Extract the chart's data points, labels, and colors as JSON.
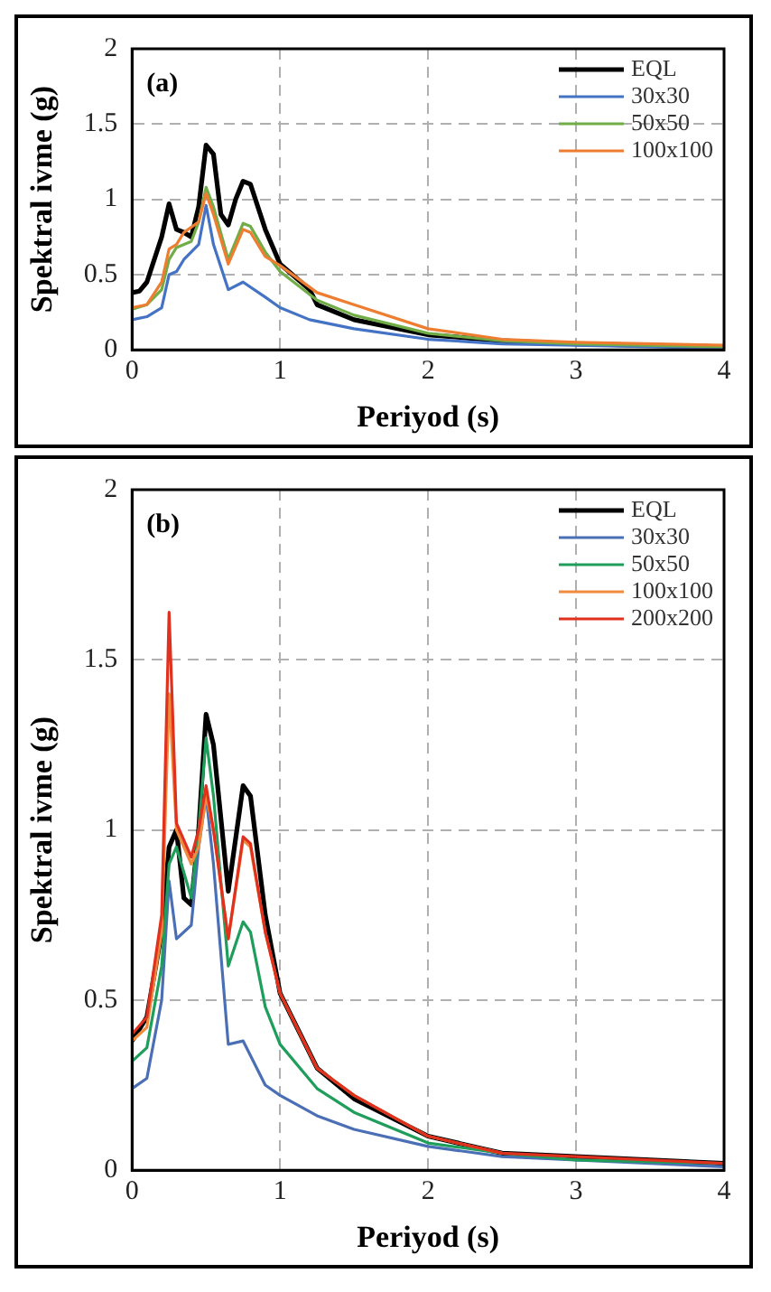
{
  "chart_data": [
    {
      "type": "line",
      "xlabel": "Periyod (s)",
      "ylabel": "Spektral ivme (g)",
      "annotations": [
        "(a)"
      ],
      "xlim": [
        0,
        4
      ],
      "xticks": [
        0,
        1,
        2,
        3,
        4
      ],
      "ylim": [
        0,
        2
      ],
      "yticks": [
        0,
        0.5,
        1,
        1.5,
        2
      ],
      "grid": true,
      "legend": "top right",
      "marker": "none",
      "line_style": "solid",
      "series": [
        {
          "name": "EQL",
          "color": "#000000",
          "x": [
            0,
            0.05,
            0.1,
            0.15,
            0.2,
            0.25,
            0.3,
            0.35,
            0.4,
            0.45,
            0.5,
            0.55,
            0.6,
            0.65,
            0.7,
            0.75,
            0.8,
            0.9,
            1,
            1.2,
            1.25,
            1.5,
            2,
            2.5,
            3,
            4
          ],
          "values": [
            0.38,
            0.39,
            0.45,
            0.6,
            0.75,
            0.97,
            0.8,
            0.78,
            0.75,
            0.95,
            1.36,
            1.3,
            0.9,
            0.83,
            1.0,
            1.12,
            1.1,
            0.8,
            0.57,
            0.4,
            0.3,
            0.2,
            0.1,
            0.06,
            0.04,
            0.02
          ]
        },
        {
          "name": "30x30",
          "color": "#4472c4",
          "x": [
            0,
            0.1,
            0.2,
            0.25,
            0.3,
            0.35,
            0.45,
            0.5,
            0.55,
            0.65,
            0.75,
            0.9,
            1,
            1.2,
            1.5,
            2,
            2.5,
            3,
            4
          ],
          "values": [
            0.2,
            0.22,
            0.28,
            0.5,
            0.52,
            0.6,
            0.7,
            0.96,
            0.7,
            0.4,
            0.45,
            0.35,
            0.28,
            0.2,
            0.14,
            0.07,
            0.04,
            0.03,
            0.01
          ]
        },
        {
          "name": "50x50",
          "color": "#70ad47",
          "x": [
            0,
            0.1,
            0.2,
            0.25,
            0.3,
            0.4,
            0.45,
            0.5,
            0.55,
            0.65,
            0.75,
            0.8,
            0.9,
            1,
            1.25,
            1.5,
            2,
            2.5,
            3,
            4
          ],
          "values": [
            0.27,
            0.3,
            0.4,
            0.6,
            0.68,
            0.72,
            0.85,
            1.08,
            0.95,
            0.6,
            0.84,
            0.82,
            0.65,
            0.52,
            0.33,
            0.23,
            0.11,
            0.06,
            0.04,
            0.02
          ]
        },
        {
          "name": "100x100",
          "color": "#ed7d31",
          "x": [
            0,
            0.1,
            0.2,
            0.25,
            0.3,
            0.35,
            0.45,
            0.5,
            0.55,
            0.65,
            0.75,
            0.8,
            0.9,
            1,
            1.25,
            1.5,
            2,
            2.5,
            3,
            4
          ],
          "values": [
            0.28,
            0.3,
            0.45,
            0.67,
            0.7,
            0.78,
            0.85,
            1.04,
            0.9,
            0.57,
            0.8,
            0.78,
            0.62,
            0.56,
            0.38,
            0.3,
            0.14,
            0.07,
            0.05,
            0.03
          ]
        }
      ]
    },
    {
      "type": "line",
      "xlabel": "Periyod (s)",
      "ylabel": "Spektral ivme (g)",
      "annotations": [
        "(b)"
      ],
      "xlim": [
        0,
        4
      ],
      "xticks": [
        0,
        1,
        2,
        3,
        4
      ],
      "ylim": [
        0,
        2
      ],
      "yticks": [
        0,
        0.5,
        1,
        1.5,
        2
      ],
      "grid": true,
      "legend": "top right",
      "marker": "none",
      "line_style": "solid",
      "series": [
        {
          "name": "EQL",
          "color": "#000000",
          "x": [
            0,
            0.1,
            0.2,
            0.25,
            0.3,
            0.35,
            0.4,
            0.45,
            0.5,
            0.55,
            0.65,
            0.75,
            0.8,
            0.9,
            1,
            1.25,
            1.5,
            2,
            2.5,
            3,
            4
          ],
          "values": [
            0.38,
            0.45,
            0.7,
            0.95,
            1.0,
            0.8,
            0.78,
            1.0,
            1.34,
            1.25,
            0.82,
            1.13,
            1.1,
            0.75,
            0.52,
            0.3,
            0.21,
            0.1,
            0.05,
            0.04,
            0.02
          ]
        },
        {
          "name": "30x30",
          "color": "#4a6fb5",
          "x": [
            0,
            0.1,
            0.2,
            0.25,
            0.3,
            0.4,
            0.45,
            0.5,
            0.55,
            0.65,
            0.75,
            0.9,
            1,
            1.25,
            1.5,
            2,
            2.5,
            3,
            4
          ],
          "values": [
            0.24,
            0.27,
            0.5,
            0.85,
            0.68,
            0.72,
            0.95,
            1.1,
            0.9,
            0.37,
            0.38,
            0.25,
            0.22,
            0.16,
            0.12,
            0.07,
            0.04,
            0.03,
            0.01
          ]
        },
        {
          "name": "50x50",
          "color": "#1e9e5a",
          "x": [
            0,
            0.1,
            0.2,
            0.25,
            0.3,
            0.4,
            0.45,
            0.5,
            0.55,
            0.65,
            0.75,
            0.8,
            0.9,
            1,
            1.25,
            1.5,
            2,
            2.5,
            3,
            4
          ],
          "values": [
            0.32,
            0.36,
            0.6,
            0.9,
            0.95,
            0.8,
            1.0,
            1.27,
            1.1,
            0.6,
            0.73,
            0.7,
            0.48,
            0.37,
            0.24,
            0.17,
            0.08,
            0.05,
            0.03,
            0.02
          ]
        },
        {
          "name": "100x100",
          "color": "#f08a3c",
          "x": [
            0,
            0.1,
            0.2,
            0.25,
            0.3,
            0.4,
            0.45,
            0.5,
            0.55,
            0.65,
            0.75,
            0.8,
            0.9,
            1,
            1.25,
            1.5,
            2,
            2.5
          ],
          "values": [
            0.38,
            0.42,
            0.7,
            1.4,
            1.0,
            0.9,
            0.95,
            1.1,
            1.0,
            0.68,
            0.97,
            0.95,
            0.7,
            0.52,
            0.3,
            0.22,
            0.1,
            0.05
          ]
        },
        {
          "name": "200x200",
          "color": "#e0301e",
          "x": [
            0,
            0.1,
            0.2,
            0.25,
            0.3,
            0.4,
            0.45,
            0.5,
            0.55,
            0.65,
            0.75,
            0.8,
            0.9,
            1,
            1.25,
            1.5,
            2,
            2.5,
            3,
            4
          ],
          "values": [
            0.4,
            0.45,
            0.75,
            1.64,
            1.02,
            0.92,
            1.0,
            1.13,
            1.0,
            0.68,
            0.98,
            0.96,
            0.7,
            0.52,
            0.3,
            0.22,
            0.1,
            0.05,
            0.04,
            0.02
          ]
        }
      ]
    }
  ]
}
